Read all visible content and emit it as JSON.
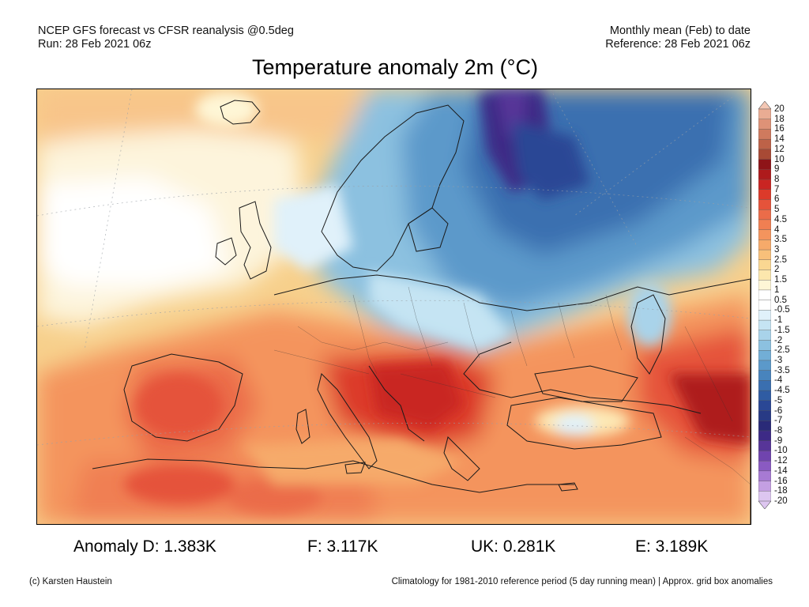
{
  "header": {
    "left_line1": "NCEP GFS forecast vs CFSR reanalysis @0.5deg",
    "left_line2": "Run: 28 Feb 2021 06z",
    "right_line1": "Monthly mean (Feb) to date",
    "right_line2": "Reference: 28 Feb 2021 06z"
  },
  "title": "Temperature anomaly 2m (°C)",
  "legend": {
    "labels": [
      "20",
      "18",
      "16",
      "14",
      "12",
      "10",
      "9",
      "8",
      "7",
      "6",
      "5",
      "4.5",
      "4",
      "3.5",
      "3",
      "2.5",
      "2",
      "1.5",
      "1",
      "0.5",
      "-0.5",
      "-1",
      "-1.5",
      "-2",
      "-2.5",
      "-3",
      "-3.5",
      "-4",
      "-4.5",
      "-5",
      "-6",
      "-7",
      "-8",
      "-9",
      "-10",
      "-12",
      "-14",
      "-16",
      "-18",
      "-20"
    ],
    "colors": [
      "#f3c7b4",
      "#e9ac93",
      "#de9277",
      "#cf7a5e",
      "#bd6248",
      "#a84a35",
      "#8e1418",
      "#ae1a1c",
      "#c92522",
      "#dc3a2a",
      "#e5533a",
      "#eb6c49",
      "#f07f52",
      "#f4945d",
      "#f6aa6a",
      "#f8c07a",
      "#fad792",
      "#fce7ad",
      "#fef6d6",
      "#ffffff",
      "#ffffff",
      "#e0f1fa",
      "#c5e4f3",
      "#a9d3ea",
      "#8cc1e0",
      "#72aed6",
      "#5b99ca",
      "#4884bd",
      "#3a6fb0",
      "#2f5ca3",
      "#2a4795",
      "#283a85",
      "#2a2a78",
      "#3d2a86",
      "#573598",
      "#7044ae",
      "#8a5ac2",
      "#a77ad3",
      "#c49fe2",
      "#ddc6f0"
    ]
  },
  "stats": {
    "d": "Anomaly D: 1.383K",
    "f": "F: 3.117K",
    "uk": "UK: 0.281K",
    "e": "E: 3.189K"
  },
  "footer": {
    "left": "(c) Karsten Haustein",
    "right": "Climatology for 1981-2010 reference period (5 day running mean) | Approx. grid box anomalies"
  }
}
